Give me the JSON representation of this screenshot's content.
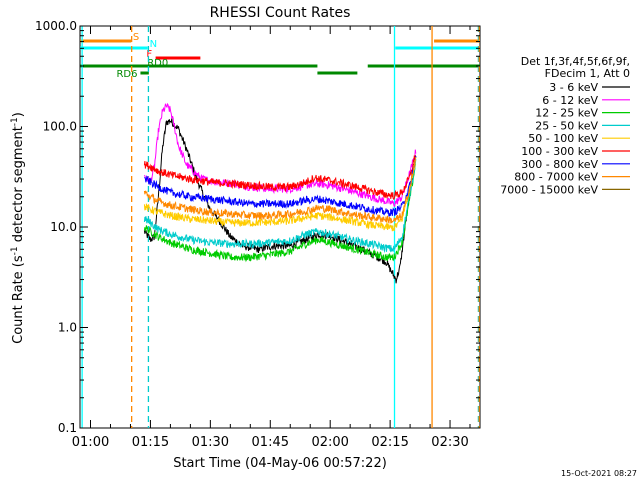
{
  "chart_data": {
    "type": "line",
    "title": "RHESSI Count Rates",
    "ylabel": "Count Rate (s⁻¹ detector segment⁻¹)",
    "ylabel_base": "Count Rate (s",
    "ylabel_mid": " detector segment",
    "ylabel_end": ")",
    "ylabel_sup": "-1",
    "xlabel": "Start Time (04-May-06 00:57:22)",
    "timestamp": "15-Oct-2021 08:27",
    "y_scale": "log",
    "ylim": [
      0.1,
      1000
    ],
    "xlim_minutes": [
      57.37,
      157.5
    ],
    "y_ticks": [
      {
        "v": 1000,
        "label": "1000.0"
      },
      {
        "v": 100,
        "label": "100.0"
      },
      {
        "v": 10,
        "label": "10.0"
      },
      {
        "v": 1,
        "label": "1.0"
      },
      {
        "v": 0.1,
        "label": "0.1"
      }
    ],
    "x_ticks": [
      {
        "m": 60,
        "label": "01:00"
      },
      {
        "m": 75,
        "label": "01:15"
      },
      {
        "m": 90,
        "label": "01:30"
      },
      {
        "m": 105,
        "label": "01:45"
      },
      {
        "m": 120,
        "label": "02:00"
      },
      {
        "m": 135,
        "label": "02:15"
      },
      {
        "m": 150,
        "label": "02:30"
      }
    ],
    "legend": {
      "header1": "Det 1f,3f,4f,5f,6f,9f,",
      "header2": "FDecim 1, Att 0",
      "placement": "right"
    },
    "series": [
      {
        "name": "3 - 6 keV",
        "color": "#000000",
        "points": [
          [
            73.5,
            9
          ],
          [
            75,
            7.5
          ],
          [
            76,
            8
          ],
          [
            77,
            20
          ],
          [
            78,
            60
          ],
          [
            79,
            110
          ],
          [
            80,
            115
          ],
          [
            82,
            95
          ],
          [
            84,
            60
          ],
          [
            86,
            35
          ],
          [
            88,
            22
          ],
          [
            90,
            15
          ],
          [
            92,
            12
          ],
          [
            95,
            8
          ],
          [
            98,
            6.5
          ],
          [
            102,
            6
          ],
          [
            106,
            6.5
          ],
          [
            110,
            6.5
          ],
          [
            114,
            7.5
          ],
          [
            117,
            8.5
          ],
          [
            120,
            8.2
          ],
          [
            124,
            7
          ],
          [
            128,
            6
          ],
          [
            132,
            5
          ],
          [
            134,
            4.5
          ],
          [
            135.5,
            3.5
          ],
          [
            136.5,
            3
          ],
          [
            137.5,
            4
          ],
          [
            139,
            12
          ],
          [
            140.5,
            30
          ],
          [
            141.5,
            55
          ]
        ]
      },
      {
        "name": "6 - 12 keV",
        "color": "#ff00ff",
        "points": [
          [
            73.5,
            32
          ],
          [
            75,
            28
          ],
          [
            76,
            40
          ],
          [
            77,
            90
          ],
          [
            78,
            140
          ],
          [
            79,
            160
          ],
          [
            80,
            145
          ],
          [
            81,
            100
          ],
          [
            82,
            65
          ],
          [
            84,
            42
          ],
          [
            86,
            35
          ],
          [
            88,
            30
          ],
          [
            92,
            28
          ],
          [
            96,
            27
          ],
          [
            100,
            25
          ],
          [
            105,
            24
          ],
          [
            110,
            24
          ],
          [
            114,
            26
          ],
          [
            117,
            27
          ],
          [
            120,
            26
          ],
          [
            125,
            23
          ],
          [
            130,
            20
          ],
          [
            134,
            18
          ],
          [
            136,
            17
          ],
          [
            138,
            20
          ],
          [
            140,
            35
          ],
          [
            141.5,
            58
          ]
        ]
      },
      {
        "name": "12 - 25 keV",
        "color": "#00cc00",
        "points": [
          [
            73.5,
            10
          ],
          [
            75,
            9
          ],
          [
            77,
            8
          ],
          [
            80,
            7
          ],
          [
            85,
            6
          ],
          [
            90,
            5.5
          ],
          [
            95,
            5
          ],
          [
            100,
            5
          ],
          [
            105,
            5.3
          ],
          [
            110,
            5.7
          ],
          [
            114,
            6.8
          ],
          [
            117,
            7.5
          ],
          [
            120,
            7
          ],
          [
            125,
            6.2
          ],
          [
            130,
            5.5
          ],
          [
            134,
            5
          ],
          [
            136,
            5
          ],
          [
            138,
            7
          ],
          [
            140,
            20
          ],
          [
            141.5,
            45
          ]
        ]
      },
      {
        "name": "25 - 50 keV",
        "color": "#00cccc",
        "points": [
          [
            73.5,
            12
          ],
          [
            75,
            11
          ],
          [
            77,
            9.5
          ],
          [
            80,
            8.5
          ],
          [
            85,
            7.5
          ],
          [
            90,
            7
          ],
          [
            95,
            6.8
          ],
          [
            100,
            6.8
          ],
          [
            105,
            7
          ],
          [
            110,
            7.3
          ],
          [
            114,
            8.5
          ],
          [
            117,
            9
          ],
          [
            120,
            8.5
          ],
          [
            125,
            7.5
          ],
          [
            130,
            6.8
          ],
          [
            134,
            6.2
          ],
          [
            136,
            6
          ],
          [
            138,
            8
          ],
          [
            140,
            22
          ],
          [
            141.5,
            48
          ]
        ]
      },
      {
        "name": "50 - 100 keV",
        "color": "#ffcc00",
        "points": [
          [
            73.5,
            16
          ],
          [
            75,
            15
          ],
          [
            77,
            14
          ],
          [
            80,
            13
          ],
          [
            85,
            12
          ],
          [
            90,
            11.5
          ],
          [
            95,
            11
          ],
          [
            100,
            11
          ],
          [
            105,
            11.2
          ],
          [
            110,
            11.5
          ],
          [
            114,
            12.5
          ],
          [
            117,
            13
          ],
          [
            120,
            12.5
          ],
          [
            125,
            11.5
          ],
          [
            130,
            10.5
          ],
          [
            134,
            10
          ],
          [
            136,
            9.8
          ],
          [
            138,
            12
          ],
          [
            140,
            25
          ],
          [
            141.5,
            50
          ]
        ]
      },
      {
        "name": "100 - 300 keV",
        "color": "#ff0000",
        "points": [
          [
            73.5,
            42
          ],
          [
            75,
            40
          ],
          [
            77,
            36
          ],
          [
            80,
            33
          ],
          [
            85,
            30
          ],
          [
            90,
            28
          ],
          [
            95,
            27
          ],
          [
            100,
            26
          ],
          [
            105,
            25
          ],
          [
            110,
            25
          ],
          [
            114,
            28
          ],
          [
            116,
            31
          ],
          [
            120,
            29
          ],
          [
            125,
            26
          ],
          [
            130,
            23
          ],
          [
            134,
            21
          ],
          [
            136,
            20.5
          ],
          [
            138,
            22
          ],
          [
            140,
            32
          ],
          [
            141.5,
            56
          ]
        ]
      },
      {
        "name": "300 - 800 keV",
        "color": "#0000ff",
        "points": [
          [
            73.5,
            30
          ],
          [
            75,
            28
          ],
          [
            77,
            25
          ],
          [
            80,
            22
          ],
          [
            85,
            20
          ],
          [
            90,
            19
          ],
          [
            95,
            18
          ],
          [
            100,
            17
          ],
          [
            105,
            17
          ],
          [
            110,
            17
          ],
          [
            114,
            18.5
          ],
          [
            117,
            19
          ],
          [
            120,
            18
          ],
          [
            125,
            16.5
          ],
          [
            130,
            15
          ],
          [
            134,
            14
          ],
          [
            136,
            14
          ],
          [
            138,
            16
          ],
          [
            140,
            26
          ],
          [
            141.5,
            52
          ]
        ]
      },
      {
        "name": "800 - 7000 keV",
        "color": "#ff8800",
        "points": [
          [
            73.5,
            22
          ],
          [
            75,
            20
          ],
          [
            77,
            18
          ],
          [
            80,
            16.5
          ],
          [
            85,
            15
          ],
          [
            90,
            14
          ],
          [
            95,
            13.5
          ],
          [
            100,
            13
          ],
          [
            105,
            13
          ],
          [
            110,
            13.5
          ],
          [
            114,
            14.5
          ],
          [
            117,
            15.5
          ],
          [
            120,
            15
          ],
          [
            125,
            13.5
          ],
          [
            130,
            12.5
          ],
          [
            134,
            12
          ],
          [
            136,
            11.5
          ],
          [
            138,
            13
          ],
          [
            140,
            25
          ],
          [
            141.5,
            50
          ]
        ]
      },
      {
        "name": "7000 - 15000 keV",
        "color": "#886600",
        "points": []
      }
    ],
    "vertical_lines": [
      {
        "m": 57.9,
        "color": "#00ffff",
        "style": "solid"
      },
      {
        "m": 70.3,
        "color": "#ff8800",
        "style": "dashed"
      },
      {
        "m": 74.5,
        "color": "#00cccc",
        "style": "dashed"
      },
      {
        "m": 136.1,
        "color": "#00ffff",
        "style": "solid"
      },
      {
        "m": 145.5,
        "color": "#ff8800",
        "style": "solid"
      },
      {
        "m": 157.1,
        "color": "#00cccc",
        "style": "dashed"
      },
      {
        "m": 157.3,
        "color": "#ff8800",
        "style": "dashed"
      }
    ],
    "flag_bars": [
      {
        "label": "S",
        "color": "#ff8800",
        "y_level": 1,
        "segments": [
          [
            57.4,
            70.2
          ],
          [
            146,
            157.5
          ]
        ]
      },
      {
        "label": "N",
        "color": "#00ffff",
        "y_level": 2,
        "segments": [
          [
            57.4,
            74.3
          ],
          [
            136.3,
            157.5
          ]
        ]
      },
      {
        "label": "F",
        "color": "#ff0000",
        "y_level": 3,
        "segments": [
          [
            76.3,
            87.5
          ]
        ]
      },
      {
        "label": "RD0",
        "color": "#008800",
        "y_level": 4,
        "segments": [
          [
            57.4,
            116.8
          ],
          [
            129.4,
            157.5
          ]
        ]
      },
      {
        "label": "RD6",
        "color": "#008800",
        "y_level": 5,
        "segments": [
          [
            72.5,
            74.6
          ],
          [
            116.8,
            126.8
          ]
        ]
      }
    ]
  }
}
